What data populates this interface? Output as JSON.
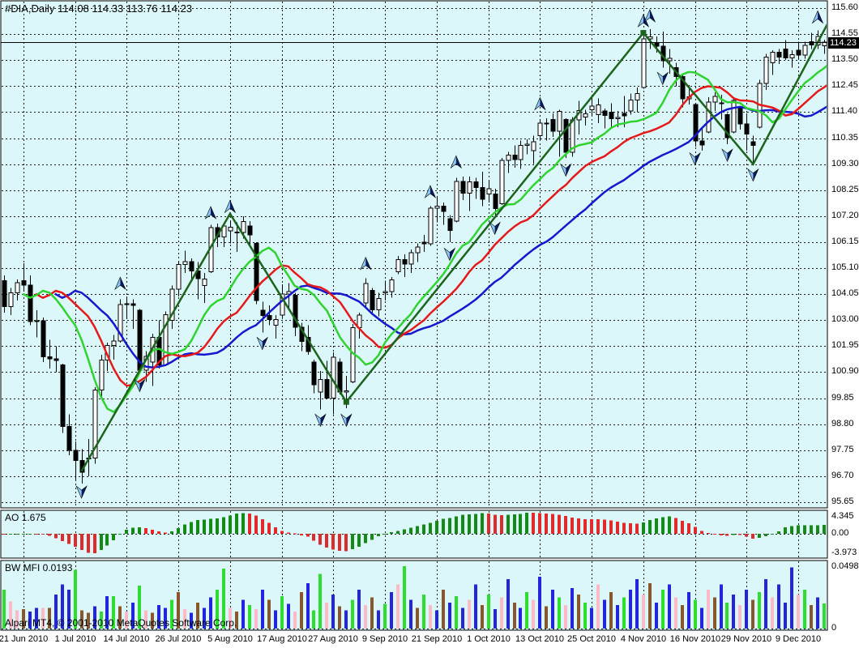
{
  "window": {
    "title": "#DIA,Daily  114.08 114.33 113.76 114.23",
    "watermark": "Alpari MT4, © 2001-2010 MetaQuotes Software Corp."
  },
  "colors": {
    "background": "#DCF7FA",
    "panel": "#FFFFFF",
    "border": "#000000",
    "grid": "#1A1A1A",
    "bull": "#FFFFFF",
    "bear": "#000000",
    "wick": "#000000",
    "lips": "#2FD32F",
    "teeth": "#E51919",
    "jaw": "#1717CE",
    "trend": "#1C641C",
    "ao_up": "#168A16",
    "ao_down": "#E32A2A",
    "mfi": {
      "g": "#2EDD2E",
      "b": "#2424DD",
      "n": "#8A562B",
      "p": "#FFB9C6"
    },
    "price_line": "#000000",
    "arrow_dark": "#0A1A66",
    "arrow_light": "#8CC8F2"
  },
  "chart_data": {
    "type": "candlestick",
    "symbol": "#DIA",
    "timeframe": "Daily",
    "ohlc_display": {
      "open": "114.08",
      "high": "114.33",
      "low": "113.76",
      "close": "114.23"
    },
    "current_price": 114.23,
    "price_tag": "114.23",
    "axis": {
      "price_ticks": [
        "115.60",
        "114.55",
        "113.50",
        "112.45",
        "111.40",
        "110.35",
        "109.30",
        "108.25",
        "107.20",
        "106.15",
        "105.10",
        "104.05",
        "103.00",
        "101.95",
        "100.90",
        "99.85",
        "98.80",
        "97.75",
        "96.70",
        "95.65"
      ],
      "price_max": 115.6,
      "price_min": 95.65,
      "time_labels": [
        {
          "i": 3,
          "t": "21 Jun 2010"
        },
        {
          "i": 11,
          "t": "1 Jul 2010"
        },
        {
          "i": 19,
          "t": "14 Jul 2010"
        },
        {
          "i": 27,
          "t": "26 Jul 2010"
        },
        {
          "i": 35,
          "t": "5 Aug 2010"
        },
        {
          "i": 43,
          "t": "17 Aug 2010"
        },
        {
          "i": 51,
          "t": "27 Aug 2010"
        },
        {
          "i": 59,
          "t": "9 Sep 2010"
        },
        {
          "i": 67,
          "t": "21 Sep 2010"
        },
        {
          "i": 75,
          "t": "1 Oct 2010"
        },
        {
          "i": 83,
          "t": "13 Oct 2010"
        },
        {
          "i": 91,
          "t": "25 Oct 2010"
        },
        {
          "i": 99,
          "t": "4 Nov 2010"
        },
        {
          "i": 107,
          "t": "16 Nov 2010"
        },
        {
          "i": 115,
          "t": "29 Nov 2010"
        },
        {
          "i": 123,
          "t": "9 Dec 2010"
        }
      ]
    },
    "candles": [
      [
        104.6,
        104.8,
        103.3,
        103.55
      ],
      [
        103.55,
        104.3,
        103.2,
        104.1
      ],
      [
        104.1,
        104.65,
        103.8,
        104.51
      ],
      [
        104.6,
        105.3,
        104.15,
        104.42
      ],
      [
        104.42,
        104.8,
        102.8,
        102.94
      ],
      [
        102.94,
        103.4,
        102.3,
        102.98
      ],
      [
        102.98,
        103.1,
        101.3,
        101.52
      ],
      [
        101.52,
        102.2,
        101.05,
        101.44
      ],
      [
        101.44,
        101.95,
        100.9,
        101.38
      ],
      [
        101.2,
        101.25,
        98.45,
        98.7
      ],
      [
        98.7,
        99.2,
        97.55,
        97.74
      ],
      [
        97.74,
        98.1,
        96.55,
        97.33
      ],
      [
        97.33,
        97.8,
        96.4,
        96.86
      ],
      [
        97.4,
        98.2,
        96.7,
        97.44
      ],
      [
        97.44,
        100.3,
        97.2,
        100.18
      ],
      [
        100.18,
        101.6,
        99.9,
        101.39
      ],
      [
        101.39,
        102.1,
        100.95,
        101.98
      ],
      [
        101.98,
        102.4,
        101.4,
        102.16
      ],
      [
        102.16,
        103.85,
        102.1,
        103.63
      ],
      [
        103.63,
        103.95,
        103.05,
        103.67
      ],
      [
        103.67,
        103.85,
        102.65,
        103.59
      ],
      [
        103.4,
        103.45,
        100.85,
        100.98
      ],
      [
        100.98,
        101.75,
        100.5,
        101.54
      ],
      [
        101.3,
        102.45,
        100.35,
        102.3
      ],
      [
        102.3,
        103.0,
        101.05,
        101.2
      ],
      [
        101.2,
        103.35,
        101.15,
        103.22
      ],
      [
        103.0,
        104.4,
        102.65,
        104.25
      ],
      [
        104.25,
        105.4,
        103.95,
        105.25
      ],
      [
        105.25,
        105.8,
        104.9,
        105.37
      ],
      [
        105.37,
        105.5,
        104.6,
        104.98
      ],
      [
        104.98,
        105.35,
        103.85,
        104.67
      ],
      [
        104.4,
        104.9,
        103.7,
        104.66
      ],
      [
        104.95,
        106.85,
        104.9,
        106.74
      ],
      [
        106.74,
        106.9,
        105.95,
        106.36
      ],
      [
        106.36,
        106.95,
        105.95,
        106.8
      ],
      [
        106.6,
        107.0,
        106.1,
        106.75
      ],
      [
        106.55,
        106.95,
        105.75,
        106.54
      ],
      [
        106.54,
        107.2,
        106.3,
        106.99
      ],
      [
        106.8,
        107.0,
        105.95,
        106.44
      ],
      [
        106.1,
        106.15,
        103.65,
        103.79
      ],
      [
        103.4,
        103.75,
        102.5,
        103.19
      ],
      [
        103.19,
        103.6,
        102.8,
        103.03
      ],
      [
        102.8,
        103.2,
        102.25,
        103.02
      ],
      [
        103.2,
        104.45,
        103.1,
        104.06
      ],
      [
        104.06,
        104.5,
        103.5,
        104.16
      ],
      [
        104.0,
        104.1,
        102.35,
        102.72
      ],
      [
        102.72,
        102.9,
        101.75,
        102.14
      ],
      [
        102.3,
        102.8,
        101.6,
        101.74
      ],
      [
        101.3,
        101.4,
        100.05,
        100.4
      ],
      [
        100.1,
        100.95,
        99.4,
        100.6
      ],
      [
        100.6,
        101.35,
        99.85,
        99.86
      ],
      [
        99.86,
        101.7,
        99.2,
        101.51
      ],
      [
        101.3,
        101.45,
        100.0,
        100.1
      ],
      [
        100.1,
        100.75,
        99.45,
        100.15
      ],
      [
        100.5,
        102.85,
        100.45,
        102.69
      ],
      [
        102.69,
        103.3,
        102.25,
        103.2
      ],
      [
        103.7,
        104.7,
        103.55,
        104.48
      ],
      [
        104.2,
        104.3,
        103.3,
        103.41
      ],
      [
        103.41,
        104.1,
        103.15,
        103.87
      ],
      [
        104.1,
        104.6,
        103.8,
        104.15
      ],
      [
        104.15,
        104.75,
        103.9,
        104.63
      ],
      [
        104.95,
        105.6,
        104.85,
        105.44
      ],
      [
        105.44,
        105.65,
        104.75,
        105.27
      ],
      [
        105.27,
        105.85,
        104.9,
        105.73
      ],
      [
        105.73,
        106.1,
        105.35,
        105.95
      ],
      [
        106.15,
        106.45,
        105.75,
        106.08
      ],
      [
        106.08,
        107.6,
        106.0,
        107.53
      ],
      [
        107.53,
        107.95,
        106.95,
        107.61
      ],
      [
        107.61,
        107.75,
        106.85,
        107.39
      ],
      [
        107.1,
        107.25,
        106.15,
        106.62
      ],
      [
        107.0,
        108.75,
        106.95,
        108.6
      ],
      [
        108.6,
        108.8,
        107.85,
        108.12
      ],
      [
        108.12,
        108.8,
        107.4,
        108.58
      ],
      [
        108.58,
        108.75,
        107.9,
        108.36
      ],
      [
        108.36,
        109.0,
        107.6,
        107.88
      ],
      [
        108.1,
        108.65,
        107.75,
        108.3
      ],
      [
        108.1,
        108.3,
        107.2,
        107.51
      ],
      [
        107.7,
        109.55,
        107.65,
        109.45
      ],
      [
        109.45,
        109.8,
        108.95,
        109.67
      ],
      [
        109.67,
        110.05,
        109.15,
        109.48
      ],
      [
        109.48,
        110.25,
        109.1,
        110.06
      ],
      [
        110.06,
        110.3,
        109.7,
        110.1
      ],
      [
        109.85,
        110.45,
        109.3,
        110.2
      ],
      [
        110.45,
        111.1,
        110.3,
        110.96
      ],
      [
        110.96,
        111.15,
        110.25,
        110.95
      ],
      [
        111.1,
        111.35,
        110.4,
        110.63
      ],
      [
        110.63,
        111.5,
        109.6,
        111.43
      ],
      [
        111.1,
        111.15,
        109.55,
        109.78
      ],
      [
        109.78,
        111.2,
        109.6,
        111.08
      ],
      [
        111.08,
        111.85,
        110.5,
        111.46
      ],
      [
        111.2,
        111.5,
        110.85,
        111.33
      ],
      [
        111.5,
        112.05,
        111.25,
        111.64
      ],
      [
        111.3,
        111.95,
        110.95,
        111.69
      ],
      [
        111.45,
        111.55,
        110.75,
        111.26
      ],
      [
        111.4,
        111.75,
        110.8,
        111.14
      ],
      [
        111.14,
        111.45,
        110.8,
        111.18
      ],
      [
        111.35,
        112.05,
        110.8,
        111.25
      ],
      [
        111.45,
        112.15,
        111.3,
        111.89
      ],
      [
        111.89,
        112.4,
        111.4,
        112.15
      ],
      [
        112.4,
        114.5,
        112.35,
        114.35
      ],
      [
        114.35,
        114.75,
        113.95,
        114.44
      ],
      [
        114.2,
        114.45,
        113.8,
        114.06
      ],
      [
        114.06,
        114.65,
        113.2,
        113.47
      ],
      [
        113.47,
        113.95,
        112.95,
        113.57
      ],
      [
        113.2,
        113.4,
        112.45,
        112.83
      ],
      [
        112.83,
        112.95,
        111.6,
        111.93
      ],
      [
        111.93,
        112.5,
        111.7,
        112.02
      ],
      [
        111.7,
        111.75,
        110.0,
        110.24
      ],
      [
        110.24,
        110.75,
        109.85,
        110.08
      ],
      [
        110.6,
        112.0,
        110.55,
        111.81
      ],
      [
        111.81,
        112.2,
        111.45,
        112.04
      ],
      [
        111.75,
        112.1,
        111.1,
        111.78
      ],
      [
        111.3,
        111.35,
        110.1,
        110.36
      ],
      [
        110.6,
        112.0,
        110.55,
        111.87
      ],
      [
        111.6,
        111.65,
        110.7,
        110.92
      ],
      [
        110.92,
        111.35,
        109.85,
        110.52
      ],
      [
        110.2,
        110.45,
        109.3,
        110.06
      ],
      [
        110.8,
        112.7,
        110.75,
        112.56
      ],
      [
        112.56,
        113.75,
        112.3,
        113.62
      ],
      [
        113.4,
        113.9,
        112.9,
        113.82
      ],
      [
        113.82,
        113.95,
        113.35,
        113.62
      ],
      [
        113.95,
        114.3,
        113.5,
        113.59
      ],
      [
        113.59,
        113.9,
        113.2,
        113.72
      ],
      [
        113.9,
        114.25,
        113.55,
        113.7
      ],
      [
        113.7,
        114.25,
        113.55,
        114.1
      ],
      [
        114.25,
        114.6,
        113.95,
        114.12
      ],
      [
        114.12,
        114.7,
        113.95,
        114.46
      ],
      [
        114.08,
        114.33,
        113.76,
        114.23
      ]
    ],
    "alligator": {
      "jaw": {
        "period": 13,
        "shift": 8
      },
      "teeth": {
        "period": 8,
        "shift": 5
      },
      "lips": {
        "period": 5,
        "shift": 3
      }
    },
    "trendline": {
      "points": [
        [
          12,
          96.9
        ],
        [
          35,
          107.3
        ],
        [
          53,
          99.7
        ],
        [
          99,
          114.6
        ],
        [
          116,
          109.3
        ],
        [
          128,
          115.2
        ]
      ],
      "handles": [
        [
          53,
          99.7
        ],
        [
          99,
          114.6
        ]
      ]
    },
    "arrows": [
      {
        "i": 12,
        "p": 96.4,
        "d": "down"
      },
      {
        "i": 18,
        "p": 104.15,
        "d": "up"
      },
      {
        "i": 21,
        "p": 100.7,
        "d": "down"
      },
      {
        "i": 32,
        "p": 107.0,
        "d": "up"
      },
      {
        "i": 35,
        "p": 107.25,
        "d": "up"
      },
      {
        "i": 40,
        "p": 102.4,
        "d": "down"
      },
      {
        "i": 49,
        "p": 99.3,
        "d": "down"
      },
      {
        "i": 53,
        "p": 99.3,
        "d": "down"
      },
      {
        "i": 56,
        "p": 104.95,
        "d": "up"
      },
      {
        "i": 66,
        "p": 107.85,
        "d": "up"
      },
      {
        "i": 69,
        "p": 106.0,
        "d": "down"
      },
      {
        "i": 70,
        "p": 109.05,
        "d": "up"
      },
      {
        "i": 76,
        "p": 107.05,
        "d": "down"
      },
      {
        "i": 83,
        "p": 111.4,
        "d": "up"
      },
      {
        "i": 87,
        "p": 109.4,
        "d": "down"
      },
      {
        "i": 99,
        "p": 114.75,
        "d": "up"
      },
      {
        "i": 100,
        "p": 114.95,
        "d": "up"
      },
      {
        "i": 102,
        "p": 113.1,
        "d": "down"
      },
      {
        "i": 107,
        "p": 109.85,
        "d": "down"
      },
      {
        "i": 112,
        "p": 110.0,
        "d": "down"
      },
      {
        "i": 116,
        "p": 109.2,
        "d": "down"
      },
      {
        "i": 126,
        "p": 114.9,
        "d": "up"
      }
    ],
    "ao": {
      "label": "AO 1.675",
      "value": 1.675,
      "fast_period": 5,
      "slow_period": 34,
      "ticks": [
        {
          "v": 4.345,
          "t": "4.345"
        },
        {
          "v": 0,
          "t": "0.00"
        },
        {
          "v": -3.973,
          "t": "-3.973"
        }
      ],
      "max": 4.345,
      "min": -3.973
    },
    "mfi": {
      "label": "BW MFI 0.0193",
      "value": 0.0193,
      "ticks": [
        {
          "v": 0.0498,
          "t": "0.0498"
        },
        {
          "v": 0,
          "t": "0"
        }
      ],
      "max": 0.0498,
      "values": [
        0.03,
        0.021,
        0.014,
        0.015,
        0.013,
        0.016,
        0.016,
        0.016,
        0.026,
        0.034,
        0.03,
        0.045,
        0.014,
        0.012,
        0.017,
        0.013,
        0.025,
        0.025,
        0.017,
        0.013,
        0.02,
        0.033,
        0.014,
        0.012,
        0.018,
        0.016,
        0.022,
        0.028,
        0.015,
        0.012,
        0.02,
        0.016,
        0.024,
        0.03,
        0.046,
        0.016,
        0.013,
        0.022,
        0.018,
        0.015,
        0.03,
        0.022,
        0.014,
        0.025,
        0.019,
        0.013,
        0.028,
        0.035,
        0.014,
        0.042,
        0.02,
        0.026,
        0.017,
        0.014,
        0.022,
        0.03,
        0.018,
        0.024,
        0.014,
        0.019,
        0.028,
        0.034,
        0.048,
        0.022,
        0.016,
        0.026,
        0.018,
        0.014,
        0.03,
        0.02,
        0.025,
        0.016,
        0.022,
        0.034,
        0.018,
        0.026,
        0.015,
        0.024,
        0.038,
        0.02,
        0.016,
        0.028,
        0.022,
        0.04,
        0.017,
        0.03,
        0.024,
        0.018,
        0.031,
        0.026,
        0.02,
        0.016,
        0.034,
        0.022,
        0.028,
        0.018,
        0.024,
        0.03,
        0.038,
        0.026,
        0.035,
        0.02,
        0.03,
        0.034,
        0.024,
        0.018,
        0.028,
        0.022,
        0.016,
        0.03,
        0.024,
        0.034,
        0.02,
        0.026,
        0.018,
        0.03,
        0.022,
        0.028,
        0.038,
        0.024,
        0.034,
        0.02,
        0.047,
        0.026,
        0.03,
        0.018,
        0.024,
        0.0193
      ],
      "color_key": "gppnbbpnbbbgnnbgbgnpbgpnbbgnpbnbbggpnbgpbnbgbpnbggpbnbgbpnbgbpgbngpbnbgbpbngbpbnbgpbnbgpbngbpbnbgbbpnbgbpnbgbpnbgbpbngbpbbbpgnbg"
    }
  }
}
